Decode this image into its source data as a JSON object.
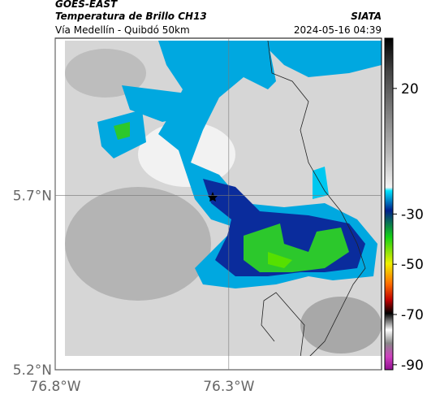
{
  "header": {
    "title": "GOES-EAST",
    "subtitle": "Temperatura de Brillo CH13",
    "source": "SIATA",
    "route": "Vía Medellín - Quibdó 50km",
    "timestamp": "2024-05-16 04:39"
  },
  "map": {
    "xlim": [
      -76.8,
      -75.86
    ],
    "ylim": [
      5.2,
      6.15
    ],
    "xticks": [
      {
        "value": -76.8,
        "label": "76.8°W"
      },
      {
        "value": -76.3,
        "label": "76.3°W"
      }
    ],
    "yticks": [
      {
        "value": 5.7,
        "label": "5.7°N"
      },
      {
        "value": 5.2,
        "label": "5.2°N"
      }
    ]
  },
  "colorbar": {
    "lim": [
      -92,
      40
    ],
    "ticks": [
      20,
      -30,
      -50,
      -70,
      -90
    ]
  }
}
